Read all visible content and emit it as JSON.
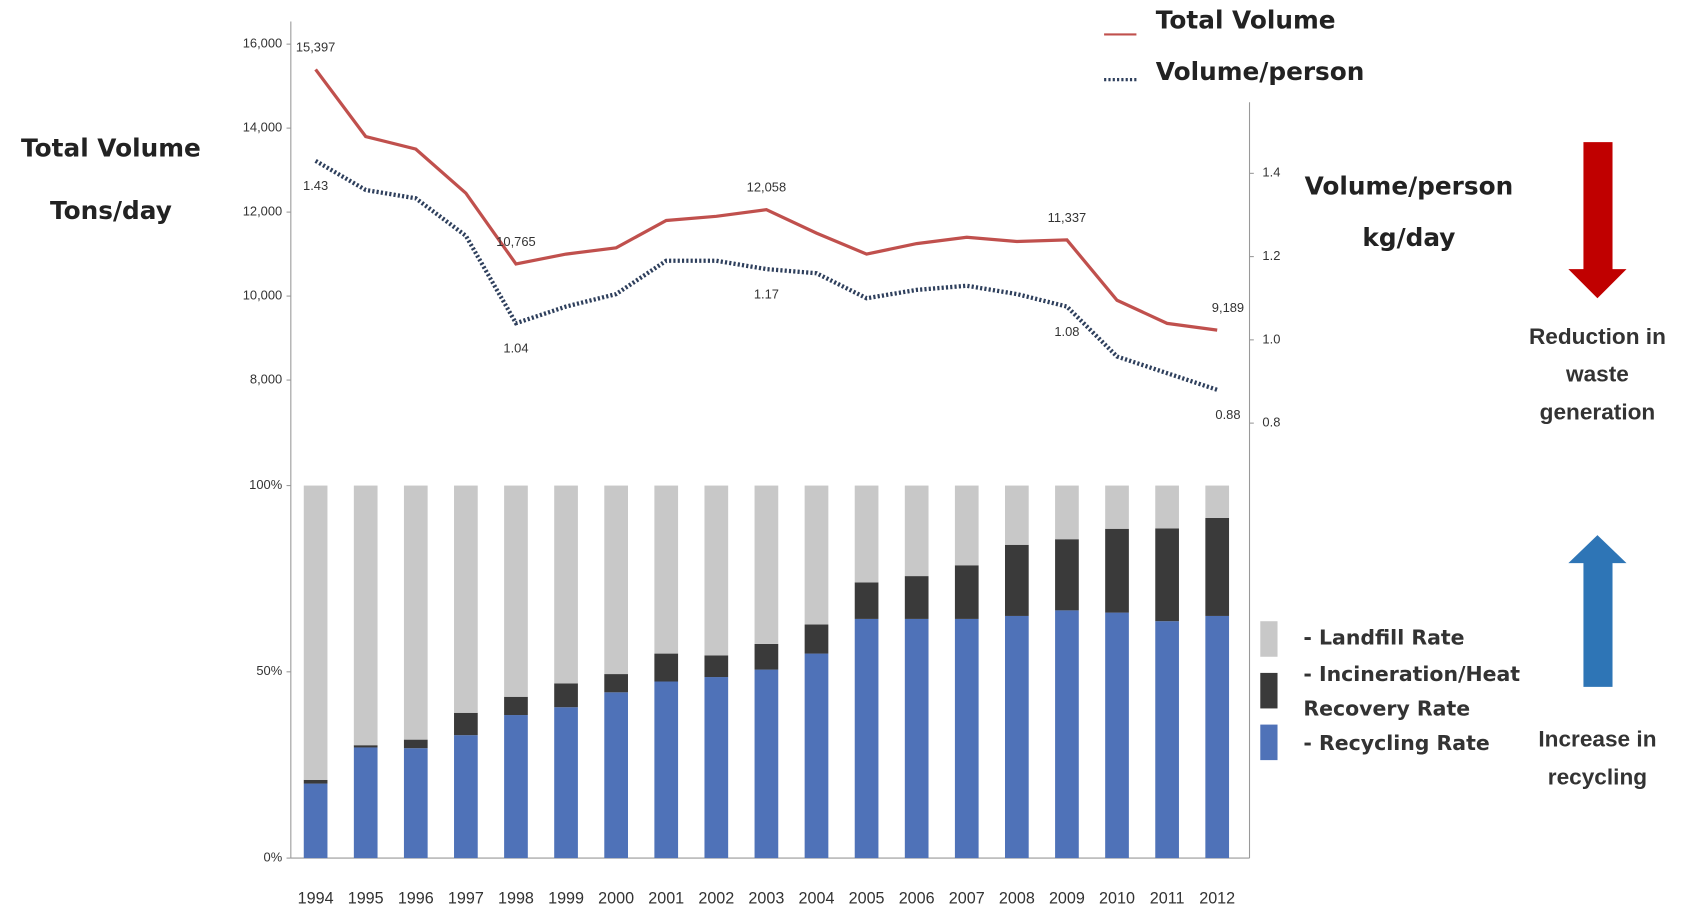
{
  "chart_data": [
    {
      "type": "line",
      "y_label": [
        "Total Volume",
        "Tons/day"
      ],
      "y2_label": [
        "Volume/person",
        "kg/day"
      ],
      "ylim": [
        8000,
        16000
      ],
      "yticks": [
        {
          "value": 8000,
          "label": "8,000"
        },
        {
          "value": 10000,
          "label": "10,000"
        },
        {
          "value": 12000,
          "label": "12,000"
        },
        {
          "value": 14000,
          "label": "14,000"
        },
        {
          "value": 16000,
          "label": "16,000"
        }
      ],
      "y2lim": [
        0.8,
        1.4
      ],
      "y2ticks": [
        {
          "value": 0.8,
          "label": "0.8"
        },
        {
          "value": 1.0,
          "label": "1.0"
        },
        {
          "value": 1.2,
          "label": "1.2"
        },
        {
          "value": 1.4,
          "label": "1.4"
        }
      ],
      "series": [
        {
          "name": "Total Volume",
          "color": "#c0504d",
          "dash": "solid",
          "values": [
            15397,
            13800,
            13500,
            12450,
            10765,
            11000,
            11150,
            11800,
            11900,
            12058,
            11500,
            11000,
            11250,
            11400,
            11300,
            11337,
            9900,
            9350,
            9189
          ],
          "value_labels": [
            "15,397",
            null,
            null,
            null,
            "10,765",
            null,
            null,
            null,
            null,
            "12,058",
            null,
            null,
            null,
            null,
            null,
            "11,337",
            null,
            null,
            "9,189"
          ]
        },
        {
          "name": "Volume/person",
          "color": "#2e3f5c",
          "dash": "dotted",
          "axis": "y2",
          "values": [
            1.43,
            1.36,
            1.34,
            1.25,
            1.04,
            1.08,
            1.11,
            1.19,
            1.19,
            1.17,
            1.16,
            1.1,
            1.12,
            1.13,
            1.11,
            1.08,
            0.96,
            0.92,
            0.88
          ],
          "value_labels": [
            "1.43",
            null,
            null,
            null,
            "1.04",
            null,
            null,
            null,
            null,
            "1.17",
            null,
            null,
            null,
            null,
            null,
            "1.08",
            null,
            null,
            "0.88"
          ]
        }
      ],
      "annotation": [
        "Reduction in",
        "waste",
        "generation"
      ],
      "annotation_color": "#c00000"
    },
    {
      "type": "stacked_bar",
      "categories": [
        "1994",
        "1995",
        "1996",
        "1997",
        "1998",
        "1999",
        "2000",
        "2001",
        "2002",
        "2003",
        "2004",
        "2005",
        "2006",
        "2007",
        "2008",
        "2009",
        "2010",
        "2011",
        "2012"
      ],
      "ylim": [
        0,
        100
      ],
      "yticks": [
        {
          "value": 0,
          "label": "0%"
        },
        {
          "value": 50,
          "label": "50%"
        },
        {
          "value": 100,
          "label": "100%"
        }
      ],
      "series": [
        {
          "name": "- Recycling Rate",
          "color": "#4f72b8",
          "label_color": "#2e5a9c",
          "values": [
            20,
            29.7,
            29.5,
            33,
            38.4,
            40.5,
            44.5,
            47.4,
            48.6,
            50.6,
            54.9,
            64.2,
            64.2,
            64.2,
            65,
            66.5,
            65.9,
            63.6,
            65
          ]
        },
        {
          "name": "- Incineration/Heat Recovery Rate",
          "color": "#3a3a3a",
          "label_color": "#000000",
          "values": [
            1,
            0.6,
            2.3,
            6,
            4.9,
            6.4,
            4.9,
            7.5,
            5.8,
            6.9,
            7.8,
            9.8,
            11.5,
            14.4,
            19.1,
            19.1,
            22.5,
            24.9,
            26.3
          ]
        },
        {
          "name": "- Landfill Rate",
          "color": "#c8c8c8",
          "label_color": "#7f7f7f",
          "values": [
            79,
            69.7,
            68.2,
            61,
            56.7,
            53.1,
            50.6,
            45.1,
            45.6,
            42.5,
            37.3,
            26,
            24.3,
            21.4,
            15.9,
            14.4,
            11.6,
            11.5,
            8.7
          ]
        }
      ],
      "annotation": [
        "Increase in",
        "recycling"
      ],
      "annotation_color": "#2e75b6"
    }
  ]
}
